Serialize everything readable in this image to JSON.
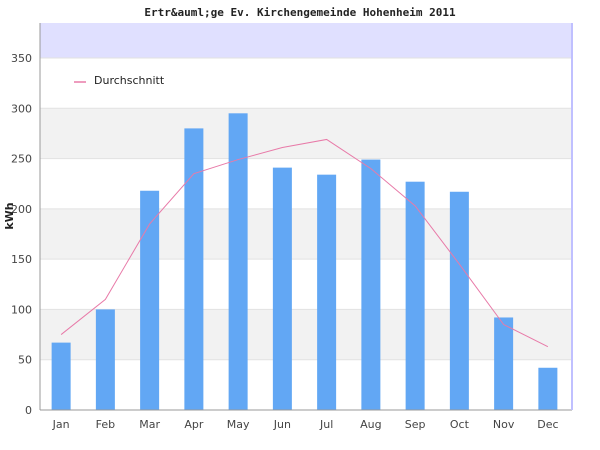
{
  "chart_data": {
    "type": "bar",
    "title": "Ertr&auml;ge Ev. Kirchengemeinde Hohenheim 2011",
    "ylabel": "kWh",
    "xlabel": "",
    "ylim": [
      0,
      350
    ],
    "yticks": [
      0,
      50,
      100,
      150,
      200,
      250,
      300,
      350
    ],
    "grid": true,
    "legend_placement": "top-left",
    "categories": [
      "Jan",
      "Feb",
      "Mar",
      "Apr",
      "May",
      "Jun",
      "Jul",
      "Aug",
      "Sep",
      "Oct",
      "Nov",
      "Dec"
    ],
    "series": [
      {
        "type": "bar",
        "values": [
          67,
          100,
          218,
          280,
          295,
          241,
          234,
          249,
          227,
          217,
          92,
          42
        ],
        "color": "#62a7f4"
      },
      {
        "name": "Durchschnitt",
        "type": "line",
        "values": [
          75,
          110,
          185,
          235,
          249,
          261,
          269,
          240,
          203,
          145,
          85,
          63
        ],
        "color": "#e87aa8"
      }
    ],
    "colors": {
      "band": "#f2f2f2",
      "top_band": "#e0e0ff",
      "grid": "#e2e2e2",
      "axis": "#999999",
      "right_border": "#c0c0ff"
    }
  }
}
